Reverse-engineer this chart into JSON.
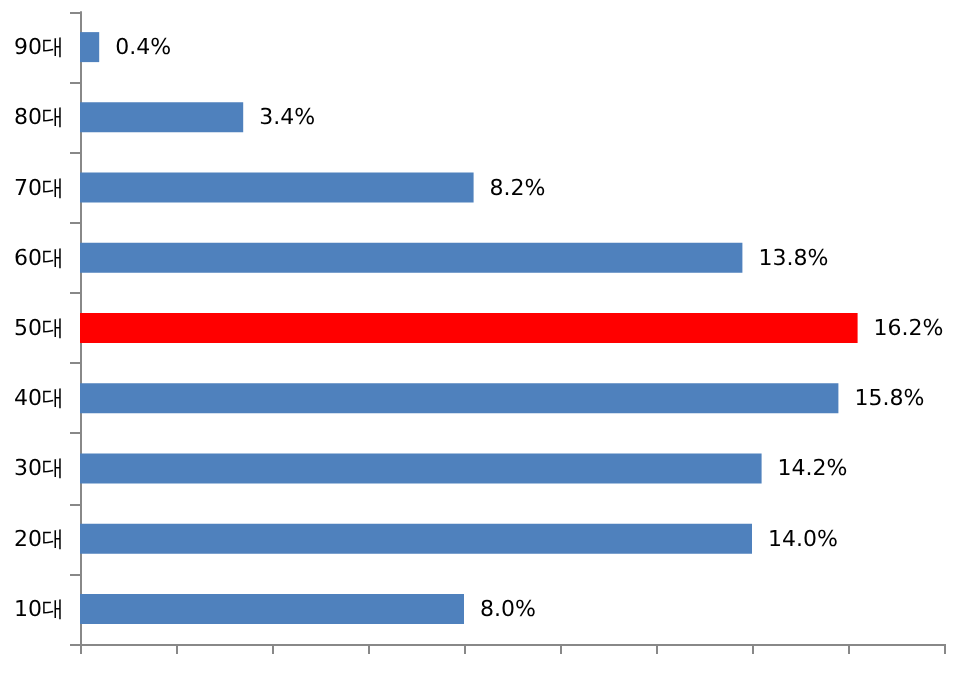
{
  "chart_data": {
    "type": "bar",
    "orientation": "horizontal",
    "categories": [
      "90대",
      "80대",
      "70대",
      "60대",
      "50대",
      "40대",
      "30대",
      "20대",
      "10대"
    ],
    "values": [
      0.4,
      3.4,
      8.2,
      13.8,
      16.2,
      15.8,
      14.2,
      14.0,
      8.0
    ],
    "value_labels": [
      "0.4%",
      "3.4%",
      "8.2%",
      "13.8%",
      "16.2%",
      "15.8%",
      "14.2%",
      "14.0%",
      "8.0%"
    ],
    "colors": [
      "#4f81bd",
      "#4f81bd",
      "#4f81bd",
      "#4f81bd",
      "#ff0000",
      "#4f81bd",
      "#4f81bd",
      "#4f81bd",
      "#4f81bd"
    ],
    "xlim": [
      0,
      18
    ],
    "xticks": [
      {
        "value": 0,
        "label": null
      },
      {
        "value": 2,
        "label": null
      },
      {
        "value": 4,
        "label": null
      },
      {
        "value": 6,
        "label": null
      },
      {
        "value": 8,
        "label": null
      },
      {
        "value": 10,
        "label": null
      },
      {
        "value": 12,
        "label": null
      },
      {
        "value": 14,
        "label": null
      },
      {
        "value": 16,
        "label": null
      },
      {
        "value": 18,
        "label": null
      }
    ],
    "tick_labels": "y"
  }
}
